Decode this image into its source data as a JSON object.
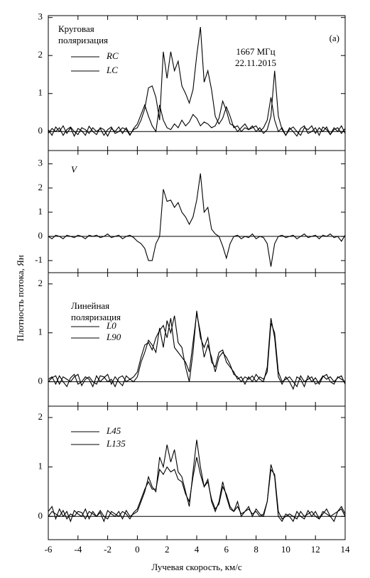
{
  "chart_data": {
    "type": "line",
    "xlabel": "Лучевая скорость, км/с",
    "ylabel": "Плотность потока, Ян",
    "xlim": [
      -6,
      14
    ],
    "xticks": [
      -6,
      -4,
      -2,
      0,
      2,
      4,
      6,
      8,
      10,
      12,
      14
    ],
    "x": [
      -6,
      -5.75,
      -5.5,
      -5.25,
      -5,
      -4.75,
      -4.5,
      -4.25,
      -4,
      -3.75,
      -3.5,
      -3.25,
      -3,
      -2.75,
      -2.5,
      -2.25,
      -2,
      -1.75,
      -1.5,
      -1.25,
      -1,
      -0.75,
      -0.5,
      -0.25,
      0,
      0.25,
      0.5,
      0.75,
      1,
      1.25,
      1.5,
      1.75,
      2,
      2.25,
      2.5,
      2.75,
      3,
      3.25,
      3.5,
      3.75,
      4,
      4.25,
      4.5,
      4.75,
      5,
      5.25,
      5.5,
      5.75,
      6,
      6.25,
      6.5,
      6.75,
      7,
      7.25,
      7.5,
      7.75,
      8,
      8.25,
      8.5,
      8.75,
      9,
      9.25,
      9.5,
      9.75,
      10,
      10.25,
      10.5,
      10.75,
      11,
      11.25,
      11.5,
      11.75,
      12,
      12.25,
      12.5,
      12.75,
      13,
      13.25,
      13.5,
      13.75,
      14
    ],
    "panels": [
      {
        "ylim": [
          -0.5,
          3.05
        ],
        "yticks": [
          0,
          1,
          2,
          3
        ],
        "annotations": [
          "Круговая",
          "поляризация",
          "1667 МГц",
          "22.11.2015",
          "(a)"
        ],
        "series": [
          {
            "name": "RC",
            "color": "#000000",
            "values": [
              0.05,
              -0.1,
              0.12,
              0.0,
              0.15,
              -0.05,
              0.1,
              -0.12,
              0.08,
              0.02,
              -0.1,
              0.14,
              0.0,
              -0.08,
              0.1,
              0.05,
              -0.12,
              0.08,
              0.0,
              0.12,
              -0.05,
              0.1,
              -0.08,
              0.05,
              0.1,
              0.3,
              0.6,
              1.15,
              1.2,
              0.9,
              0.3,
              2.1,
              1.4,
              2.1,
              1.6,
              1.85,
              1.2,
              1.0,
              0.75,
              1.1,
              2.0,
              2.75,
              1.3,
              1.6,
              1.1,
              0.4,
              0.2,
              0.35,
              0.65,
              0.4,
              0.1,
              0.15,
              0.0,
              0.1,
              0.05,
              0.15,
              0.0,
              0.1,
              -0.05,
              0.05,
              0.4,
              1.6,
              0.4,
              0.05,
              -0.1,
              0.1,
              0.0,
              -0.12,
              0.08,
              0.15,
              -0.05,
              0.0,
              0.1,
              -0.1,
              0.12,
              0.05,
              -0.08,
              0.1,
              0.0,
              0.15,
              -0.05
            ]
          },
          {
            "name": "LC",
            "color": "#000000",
            "values": [
              -0.05,
              0.08,
              0.0,
              0.1,
              -0.1,
              0.05,
              0.12,
              0.0,
              -0.08,
              0.1,
              0.05,
              -0.05,
              0.1,
              0.0,
              0.08,
              -0.1,
              0.05,
              0.12,
              -0.05,
              0.0,
              0.1,
              0.05,
              -0.1,
              0.08,
              0.2,
              0.45,
              0.7,
              0.4,
              0.15,
              0.0,
              0.7,
              0.3,
              0.1,
              0.05,
              0.2,
              0.1,
              0.3,
              0.15,
              0.25,
              0.45,
              0.35,
              0.15,
              0.25,
              0.2,
              0.1,
              0.15,
              0.35,
              0.8,
              0.55,
              0.2,
              0.15,
              0.0,
              0.1,
              0.2,
              0.05,
              0.1,
              0.15,
              0.0,
              0.1,
              0.3,
              0.9,
              0.3,
              0.0,
              0.1,
              -0.1,
              0.05,
              0.12,
              0.0,
              -0.1,
              0.1,
              0.05,
              0.15,
              -0.05,
              0.1,
              0.0,
              0.12,
              -0.08,
              0.05,
              0.1,
              -0.05,
              0.08
            ]
          }
        ]
      },
      {
        "ylim": [
          -1.5,
          3.55
        ],
        "yticks": [
          -1,
          0,
          1,
          2,
          3
        ],
        "series": [
          {
            "name": "V",
            "color": "#000000",
            "values": [
              0.0,
              -0.1,
              0.05,
              0.0,
              -0.1,
              0.05,
              0.0,
              -0.05,
              0.05,
              0.0,
              -0.1,
              0.05,
              0.0,
              0.05,
              -0.05,
              0.0,
              0.1,
              -0.05,
              0.0,
              0.05,
              -0.1,
              0.0,
              0.05,
              -0.05,
              -0.2,
              -0.3,
              -0.5,
              -1.0,
              -1.0,
              -0.3,
              0.0,
              1.95,
              1.45,
              1.5,
              1.2,
              1.4,
              1.0,
              0.8,
              0.5,
              0.8,
              1.5,
              2.6,
              1.0,
              1.2,
              0.3,
              0.1,
              0.0,
              -0.4,
              -0.9,
              -0.3,
              0.0,
              0.05,
              -0.1,
              0.0,
              -0.05,
              0.1,
              -0.1,
              0.0,
              -0.05,
              -0.3,
              -1.25,
              -0.3,
              0.0,
              0.05,
              -0.05,
              0.0,
              0.05,
              -0.1,
              0.0,
              0.1,
              -0.05,
              0.0,
              0.05,
              -0.1,
              0.05,
              0.0,
              0.1,
              -0.05,
              0.0,
              -0.2,
              0.05
            ]
          }
        ]
      },
      {
        "ylim": [
          -0.5,
          2.23
        ],
        "yticks": [
          0,
          1,
          2
        ],
        "annotations": [
          "Линейная",
          "поляризация"
        ],
        "series": [
          {
            "name": "L0",
            "color": "#000000",
            "values": [
              0.05,
              0.1,
              -0.05,
              0.12,
              0.0,
              -0.1,
              0.08,
              0.15,
              -0.05,
              0.0,
              0.1,
              0.05,
              -0.1,
              0.12,
              0.0,
              0.08,
              0.15,
              -0.05,
              0.1,
              0.0,
              -0.08,
              0.12,
              0.05,
              0.0,
              0.1,
              0.4,
              0.6,
              0.85,
              0.75,
              0.6,
              1.1,
              0.7,
              1.25,
              1.0,
              1.35,
              0.8,
              0.7,
              0.3,
              0.0,
              0.6,
              1.45,
              0.9,
              0.7,
              0.9,
              0.4,
              0.3,
              0.6,
              0.65,
              0.4,
              0.3,
              0.2,
              0.05,
              0.1,
              -0.05,
              0.1,
              0.0,
              0.15,
              0.05,
              0.0,
              0.3,
              1.3,
              0.9,
              0.1,
              -0.05,
              0.1,
              0.0,
              -0.15,
              0.1,
              0.05,
              -0.1,
              0.12,
              0.0,
              0.08,
              -0.05,
              0.1,
              0.15,
              0.0,
              -0.05,
              0.1,
              0.05,
              0.0
            ]
          },
          {
            "name": "L90",
            "color": "#000000",
            "values": [
              0.0,
              0.08,
              0.12,
              -0.05,
              0.1,
              0.05,
              0.0,
              0.1,
              0.15,
              -0.08,
              0.05,
              0.1,
              0.0,
              -0.05,
              0.12,
              0.1,
              0.0,
              0.05,
              -0.1,
              0.08,
              0.12,
              0.0,
              0.05,
              0.1,
              0.2,
              0.5,
              0.75,
              0.8,
              0.65,
              0.9,
              1.05,
              1.15,
              0.9,
              1.3,
              0.7,
              0.6,
              0.5,
              0.4,
              0.2,
              0.8,
              1.4,
              1.0,
              0.5,
              0.75,
              0.5,
              0.2,
              0.5,
              0.6,
              0.5,
              0.35,
              0.15,
              0.1,
              0.0,
              0.1,
              0.05,
              0.12,
              0.0,
              0.1,
              0.05,
              0.2,
              1.2,
              1.0,
              0.2,
              0.0,
              0.05,
              0.1,
              0.0,
              -0.1,
              0.12,
              0.0,
              0.05,
              0.1,
              -0.05,
              0.0,
              0.12,
              0.05,
              0.1,
              0.0,
              0.08,
              0.12,
              -0.05
            ]
          }
        ]
      },
      {
        "ylim": [
          -0.47,
          2.23
        ],
        "yticks": [
          0,
          1,
          2
        ],
        "series": [
          {
            "name": "L45",
            "color": "#000000",
            "values": [
              0.1,
              0.2,
              -0.05,
              0.15,
              0.0,
              0.1,
              -0.1,
              0.12,
              0.05,
              0.0,
              0.15,
              -0.05,
              0.1,
              0.0,
              0.08,
              -0.1,
              0.12,
              0.05,
              0.0,
              0.1,
              -0.05,
              0.12,
              0.0,
              0.05,
              0.1,
              0.3,
              0.5,
              0.8,
              0.6,
              0.5,
              1.2,
              1.0,
              1.45,
              1.1,
              1.35,
              0.9,
              0.8,
              0.5,
              0.2,
              0.9,
              1.55,
              1.0,
              0.6,
              0.75,
              0.3,
              0.1,
              0.3,
              0.7,
              0.4,
              0.15,
              0.1,
              0.3,
              0.0,
              0.1,
              0.2,
              0.0,
              0.15,
              0.05,
              0.0,
              0.3,
              1.05,
              0.8,
              0.0,
              -0.1,
              0.05,
              0.0,
              -0.1,
              0.1,
              0.0,
              -0.05,
              0.12,
              0.0,
              0.1,
              -0.05,
              0.05,
              0.15,
              0.0,
              -0.1,
              0.1,
              0.2,
              0.05
            ]
          },
          {
            "name": "L135",
            "color": "#000000",
            "values": [
              0.0,
              0.1,
              0.05,
              0.0,
              0.12,
              -0.05,
              0.05,
              0.0,
              0.1,
              0.08,
              -0.05,
              0.1,
              0.05,
              0.0,
              0.12,
              0.0,
              -0.05,
              0.1,
              0.05,
              0.0,
              0.1,
              0.05,
              -0.05,
              0.08,
              0.15,
              0.35,
              0.55,
              0.7,
              0.55,
              0.55,
              0.95,
              0.85,
              1.0,
              0.9,
              0.95,
              0.75,
              0.7,
              0.45,
              0.3,
              0.8,
              1.2,
              0.85,
              0.6,
              0.7,
              0.35,
              0.15,
              0.25,
              0.6,
              0.45,
              0.2,
              0.1,
              0.2,
              0.05,
              0.1,
              0.15,
              0.05,
              0.1,
              0.0,
              0.05,
              0.3,
              0.95,
              0.85,
              0.1,
              -0.05,
              0.0,
              0.05,
              0.0,
              -0.05,
              0.1,
              0.0,
              0.05,
              0.1,
              0.0,
              -0.05,
              0.1,
              0.05,
              0.0,
              0.05,
              0.1,
              0.15,
              0.0
            ]
          }
        ]
      }
    ]
  }
}
